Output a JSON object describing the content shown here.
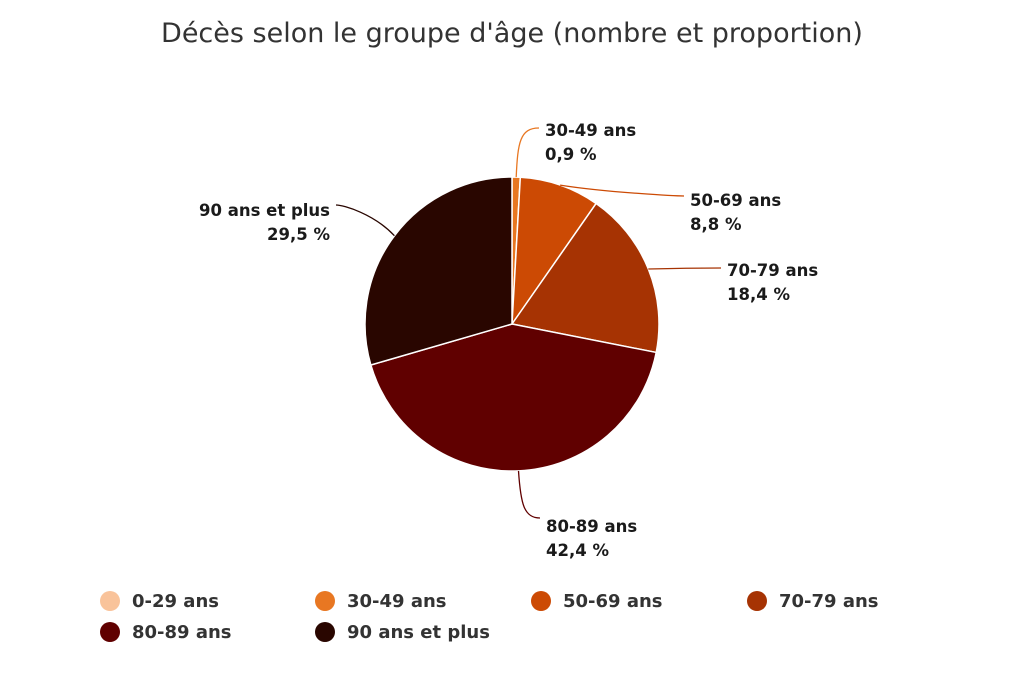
{
  "chart_data": {
    "type": "pie",
    "title": "Décès selon le groupe d'âge (nombre et proportion)",
    "value_suffix": " %",
    "series": [
      {
        "name": "0-29 ans",
        "value": 0.0,
        "display": "",
        "color": "#F9C39A"
      },
      {
        "name": "30-49 ans",
        "value": 0.9,
        "display": "0,9 %",
        "color": "#E87722"
      },
      {
        "name": "50-69 ans",
        "value": 8.8,
        "display": "8,8 %",
        "color": "#CC4A04"
      },
      {
        "name": "70-79 ans",
        "value": 18.4,
        "display": "18,4 %",
        "color": "#A63303"
      },
      {
        "name": "80-89 ans",
        "value": 42.4,
        "display": "42,4 %",
        "color": "#600000"
      },
      {
        "name": "90 ans et plus",
        "value": 29.5,
        "display": "29,5 %",
        "color": "#290600"
      }
    ],
    "legend": {
      "position": "bottom"
    }
  }
}
